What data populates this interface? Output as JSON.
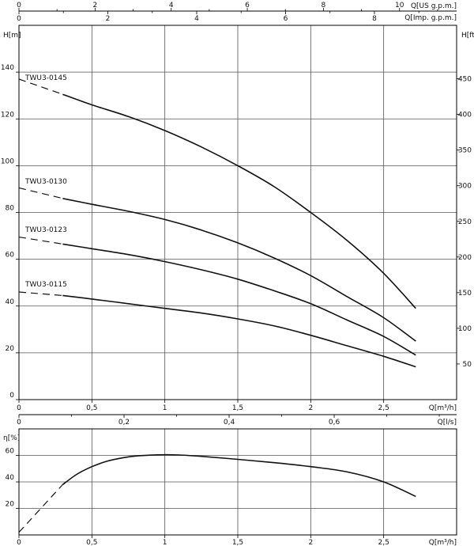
{
  "chart_data": [
    {
      "type": "line",
      "title": "",
      "xlabel": "Q[m³/h]",
      "ylabel": "H[m]",
      "ylabel_right": "H[ft]",
      "xlabel_top_1": "Q[US g.p.m.]",
      "xlabel_top_2": "Q[Imp. g.p.m.]",
      "xlim": [
        0,
        3.0
      ],
      "ylim": [
        0,
        160
      ],
      "ylim_right": [
        0,
        525
      ],
      "x_ticks": [
        "0",
        "0,5",
        "1",
        "1,5",
        "2",
        "2,5"
      ],
      "x_tick_values": [
        0,
        0.5,
        1,
        1.5,
        2,
        2.5
      ],
      "y_ticks": [
        "0",
        "20",
        "40",
        "60",
        "80",
        "100",
        "120",
        "140"
      ],
      "y_tick_values": [
        0,
        20,
        40,
        60,
        80,
        100,
        120,
        140
      ],
      "y_right_ticks": [
        "50",
        "100",
        "150",
        "200",
        "250",
        "300",
        "350",
        "400",
        "450"
      ],
      "y_right_tick_values": [
        50,
        100,
        150,
        200,
        250,
        300,
        350,
        400,
        450
      ],
      "top1_ticks": [
        "0",
        "2",
        "4",
        "6",
        "8",
        "10"
      ],
      "top1_tick_values": [
        0,
        2,
        4,
        6,
        8,
        10
      ],
      "top2_ticks": [
        "0",
        "2",
        "4",
        "6",
        "8"
      ],
      "top2_tick_values": [
        0,
        2,
        4,
        6,
        8
      ],
      "grid": true,
      "series": [
        {
          "name": "TWU3-0145",
          "dashed": [
            [
              0,
              137
            ],
            [
              0.3,
              130.5
            ]
          ],
          "points": [
            [
              0.3,
              130.5
            ],
            [
              0.5,
              126
            ],
            [
              0.75,
              121
            ],
            [
              1.0,
              115
            ],
            [
              1.25,
              108
            ],
            [
              1.5,
              100
            ],
            [
              1.75,
              91
            ],
            [
              2.0,
              80
            ],
            [
              2.25,
              68
            ],
            [
              2.5,
              54
            ],
            [
              2.72,
              39
            ]
          ]
        },
        {
          "name": "TWU3-0130",
          "dashed": [
            [
              0,
              90.5
            ],
            [
              0.3,
              86
            ]
          ],
          "points": [
            [
              0.3,
              86
            ],
            [
              0.5,
              83.5
            ],
            [
              0.75,
              80.5
            ],
            [
              1.0,
              77
            ],
            [
              1.25,
              72.5
            ],
            [
              1.5,
              67
            ],
            [
              1.75,
              60.5
            ],
            [
              2.0,
              53
            ],
            [
              2.25,
              44
            ],
            [
              2.5,
              35
            ],
            [
              2.72,
              25
            ]
          ]
        },
        {
          "name": "TWU3-0123",
          "dashed": [
            [
              0,
              69.5
            ],
            [
              0.3,
              66.5
            ]
          ],
          "points": [
            [
              0.3,
              66.5
            ],
            [
              0.5,
              64.5
            ],
            [
              0.75,
              62
            ],
            [
              1.0,
              59
            ],
            [
              1.25,
              55.5
            ],
            [
              1.5,
              51.5
            ],
            [
              1.75,
              46.5
            ],
            [
              2.0,
              41
            ],
            [
              2.25,
              34
            ],
            [
              2.5,
              27
            ],
            [
              2.72,
              19
            ]
          ]
        },
        {
          "name": "TWU3-0115",
          "dashed": [
            [
              0,
              46
            ],
            [
              0.3,
              44.5
            ]
          ],
          "points": [
            [
              0.3,
              44.5
            ],
            [
              0.5,
              43
            ],
            [
              0.75,
              41
            ],
            [
              1.0,
              39
            ],
            [
              1.25,
              37
            ],
            [
              1.5,
              34.5
            ],
            [
              1.75,
              31.5
            ],
            [
              2.0,
              27.5
            ],
            [
              2.25,
              23
            ],
            [
              2.5,
              18.5
            ],
            [
              2.72,
              14
            ]
          ]
        }
      ]
    },
    {
      "type": "line",
      "title": "",
      "xlabel": "Q[m³/h]",
      "ylabel": "η[%]",
      "xlabel_top": "Q[l/s]",
      "xlim": [
        0,
        3.0
      ],
      "ylim": [
        0,
        80
      ],
      "x_ticks": [
        "0",
        "0,5",
        "1",
        "1,5",
        "2",
        "2,5"
      ],
      "x_tick_values": [
        0,
        0.5,
        1,
        1.5,
        2,
        2.5
      ],
      "y_ticks": [
        "20",
        "40",
        "60"
      ],
      "y_tick_values": [
        20,
        40,
        60
      ],
      "top_ticks": [
        "0",
        "0,2",
        "0,4",
        "0,6"
      ],
      "top_tick_values": [
        0,
        0.2,
        0.4,
        0.6
      ],
      "grid": true,
      "series": [
        {
          "name": "",
          "dashed": [
            [
              0,
              2
            ],
            [
              0.3,
              38
            ]
          ],
          "points": [
            [
              0.3,
              38
            ],
            [
              0.4,
              46
            ],
            [
              0.5,
              51.5
            ],
            [
              0.6,
              55.5
            ],
            [
              0.7,
              58
            ],
            [
              0.8,
              59.5
            ],
            [
              0.9,
              60.2
            ],
            [
              1.0,
              60.5
            ],
            [
              1.1,
              60.3
            ],
            [
              1.25,
              59.3
            ],
            [
              1.5,
              57
            ],
            [
              1.75,
              54.5
            ],
            [
              2.0,
              51.5
            ],
            [
              2.25,
              47.5
            ],
            [
              2.5,
              40
            ],
            [
              2.72,
              29
            ]
          ]
        }
      ]
    }
  ]
}
